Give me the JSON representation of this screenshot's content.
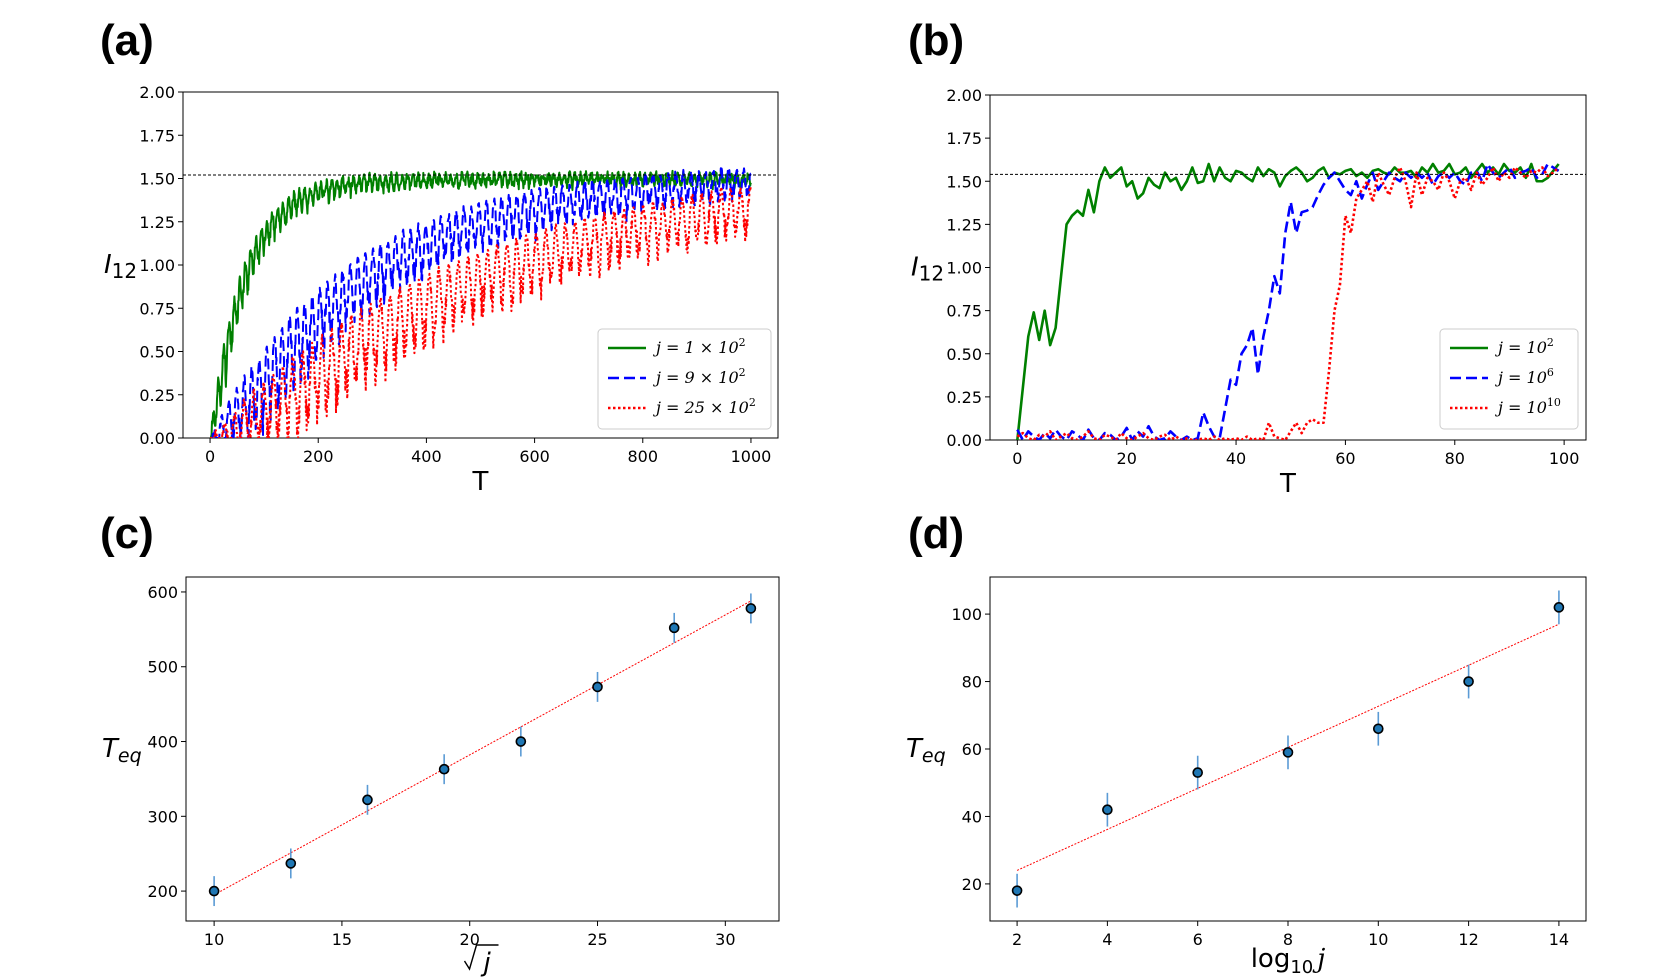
{
  "figure": {
    "panel_labels": [
      "(a)",
      "(b)",
      "(c)",
      "(d)"
    ]
  },
  "chart_data": [
    {
      "id": "a",
      "type": "line",
      "xlabel": "T",
      "ylabel": "I",
      "ylabel_sub": "12",
      "xlim": [
        -50,
        1050
      ],
      "ylim": [
        0,
        2.0
      ],
      "xticks": [
        0,
        200,
        400,
        600,
        800,
        1000
      ],
      "yticks": [
        0.0,
        0.25,
        0.5,
        0.75,
        1.0,
        1.25,
        1.5,
        1.75,
        2.0
      ],
      "ytick_labels": [
        "0.00",
        "0.25",
        "0.50",
        "0.75",
        "1.00",
        "1.25",
        "1.50",
        "1.75",
        "2.00"
      ],
      "reference_line": 1.52,
      "legend_position": "lower-right",
      "series": [
        {
          "name": "j = 1 × 10",
          "legend_sup": "2",
          "color": "#008000",
          "dash": "solid",
          "model": {
            "x_max": 1000,
            "samples": 1400,
            "tau": 60,
            "sat": 1.52,
            "amp": 0.22,
            "period": 10,
            "amp_decay": 120
          }
        },
        {
          "name": "j = 9 × 10",
          "legend_sup": "2",
          "color": "#0000ff",
          "dash": "dashed",
          "model": {
            "x_max": 1000,
            "samples": 1400,
            "tau": 260,
            "sat": 1.58,
            "amp": 0.38,
            "period": 14,
            "amp_decay": 700
          }
        },
        {
          "name": "j = 25 × 10",
          "legend_sup": "2",
          "color": "#ff0000",
          "dash": "dotted",
          "model": {
            "x_max": 1000,
            "samples": 1400,
            "tau": 480,
            "sat": 1.65,
            "amp": 0.42,
            "period": 18,
            "amp_decay": 1200
          }
        }
      ]
    },
    {
      "id": "b",
      "type": "line",
      "xlabel": "T",
      "ylabel": "I",
      "ylabel_sub": "12",
      "xlim": [
        -5,
        104
      ],
      "ylim": [
        0,
        2.0
      ],
      "xticks": [
        0,
        20,
        40,
        60,
        80,
        100
      ],
      "yticks": [
        0.0,
        0.25,
        0.5,
        0.75,
        1.0,
        1.25,
        1.5,
        1.75,
        2.0
      ],
      "ytick_labels": [
        "0.00",
        "0.25",
        "0.50",
        "0.75",
        "1.00",
        "1.25",
        "1.50",
        "1.75",
        "2.00"
      ],
      "reference_line": 1.54,
      "legend_position": "lower-right",
      "series": [
        {
          "name": "j = 10",
          "legend_sup": "2",
          "color": "#008000",
          "dash": "solid",
          "x": [
            0,
            1,
            2,
            3,
            4,
            5,
            6,
            7,
            8,
            9,
            10,
            11,
            12,
            13,
            14,
            15,
            16,
            17,
            18,
            19,
            20,
            21,
            22,
            23,
            24,
            25,
            26,
            27,
            28,
            29,
            30,
            31,
            32,
            33,
            34,
            35,
            36,
            37,
            38,
            39,
            40,
            41,
            42,
            43,
            44,
            45,
            46,
            47,
            48,
            49,
            50,
            51,
            52,
            53,
            54,
            55,
            56,
            57,
            58,
            59,
            60,
            61,
            62,
            63,
            64,
            65,
            66,
            67,
            68,
            69,
            70,
            71,
            72,
            73,
            74,
            75,
            76,
            77,
            78,
            79,
            80,
            81,
            82,
            83,
            84,
            85,
            86,
            87,
            88,
            89,
            90,
            91,
            92,
            93,
            94,
            95,
            96,
            97,
            98,
            99
          ],
          "y": [
            0.0,
            0.3,
            0.6,
            0.74,
            0.58,
            0.75,
            0.55,
            0.65,
            0.95,
            1.25,
            1.3,
            1.33,
            1.3,
            1.45,
            1.32,
            1.5,
            1.58,
            1.52,
            1.55,
            1.58,
            1.47,
            1.5,
            1.4,
            1.43,
            1.52,
            1.48,
            1.46,
            1.55,
            1.5,
            1.52,
            1.45,
            1.5,
            1.58,
            1.49,
            1.5,
            1.6,
            1.5,
            1.58,
            1.52,
            1.5,
            1.56,
            1.55,
            1.52,
            1.5,
            1.58,
            1.53,
            1.57,
            1.55,
            1.47,
            1.53,
            1.56,
            1.58,
            1.55,
            1.5,
            1.52,
            1.56,
            1.58,
            1.52,
            1.55,
            1.54,
            1.56,
            1.57,
            1.53,
            1.55,
            1.52,
            1.56,
            1.57,
            1.55,
            1.54,
            1.58,
            1.55,
            1.55,
            1.56,
            1.52,
            1.58,
            1.55,
            1.6,
            1.55,
            1.56,
            1.6,
            1.54,
            1.55,
            1.58,
            1.52,
            1.56,
            1.6,
            1.55,
            1.58,
            1.54,
            1.6,
            1.56,
            1.55,
            1.58,
            1.52,
            1.6,
            1.5,
            1.5,
            1.52,
            1.56,
            1.6
          ]
        },
        {
          "name": "j = 10",
          "legend_sup": "6",
          "color": "#0000ff",
          "dash": "dashed",
          "x": [
            0,
            1,
            2,
            3,
            4,
            5,
            6,
            7,
            8,
            9,
            10,
            11,
            12,
            13,
            14,
            15,
            16,
            17,
            18,
            19,
            20,
            21,
            22,
            23,
            24,
            25,
            26,
            27,
            28,
            29,
            30,
            31,
            32,
            33,
            34,
            35,
            36,
            37,
            38,
            39,
            40,
            41,
            42,
            43,
            44,
            45,
            46,
            47,
            48,
            49,
            50,
            51,
            52,
            53,
            54,
            55,
            56,
            57,
            58,
            59,
            60,
            61,
            62,
            63,
            64,
            65,
            66,
            67,
            68,
            69,
            70,
            71,
            72,
            73,
            74,
            75,
            76,
            77,
            78,
            79,
            80,
            81,
            82,
            83,
            84,
            85,
            86,
            87,
            88,
            89,
            90,
            91,
            92,
            93,
            94,
            95,
            96,
            97,
            98,
            99
          ],
          "y": [
            0.06,
            0.0,
            0.05,
            0.02,
            0.0,
            0.04,
            0.01,
            0.06,
            0.02,
            0.0,
            0.05,
            0.03,
            0.0,
            0.06,
            0.01,
            0.0,
            0.04,
            0.03,
            0.0,
            0.02,
            0.07,
            0.0,
            0.05,
            0.02,
            0.08,
            0.02,
            0.0,
            0.01,
            0.05,
            0.02,
            0.0,
            0.02,
            0.0,
            0.01,
            0.16,
            0.08,
            0.02,
            0.01,
            0.18,
            0.35,
            0.32,
            0.5,
            0.55,
            0.65,
            0.38,
            0.6,
            0.75,
            0.95,
            0.85,
            1.2,
            1.38,
            1.2,
            1.32,
            1.33,
            1.35,
            1.42,
            1.48,
            1.52,
            1.55,
            1.5,
            1.45,
            1.42,
            1.5,
            1.4,
            1.48,
            1.55,
            1.45,
            1.5,
            1.55,
            1.52,
            1.5,
            1.55,
            1.52,
            1.55,
            1.52,
            1.55,
            1.48,
            1.53,
            1.55,
            1.52,
            1.55,
            1.5,
            1.48,
            1.55,
            1.56,
            1.5,
            1.6,
            1.55,
            1.52,
            1.55,
            1.58,
            1.52,
            1.55,
            1.56,
            1.58,
            1.52,
            1.54,
            1.6,
            1.58,
            1.56
          ]
        },
        {
          "name": "j = 10",
          "legend_sup": "10",
          "color": "#ff0000",
          "dash": "dotted",
          "x": [
            0,
            1,
            2,
            3,
            4,
            5,
            6,
            7,
            8,
            9,
            10,
            11,
            12,
            13,
            14,
            15,
            16,
            17,
            18,
            19,
            20,
            21,
            22,
            23,
            24,
            25,
            26,
            27,
            28,
            29,
            30,
            31,
            32,
            33,
            34,
            35,
            36,
            37,
            38,
            39,
            40,
            41,
            42,
            43,
            44,
            45,
            46,
            47,
            48,
            49,
            50,
            51,
            52,
            53,
            54,
            55,
            56,
            57,
            58,
            59,
            60,
            61,
            62,
            63,
            64,
            65,
            66,
            67,
            68,
            69,
            70,
            71,
            72,
            73,
            74,
            75,
            76,
            77,
            78,
            79,
            80,
            81,
            82,
            83,
            84,
            85,
            86,
            87,
            88,
            89,
            90,
            91,
            92,
            93,
            94,
            95,
            96,
            97,
            98,
            99
          ],
          "y": [
            0.02,
            0.04,
            0.01,
            0.0,
            0.03,
            0.02,
            0.05,
            0.0,
            0.02,
            0.04,
            0.01,
            0.0,
            0.02,
            0.05,
            0.01,
            0.0,
            0.03,
            0.02,
            0.0,
            0.04,
            0.01,
            0.0,
            0.02,
            0.04,
            0.01,
            0.0,
            0.02,
            0.03,
            0.0,
            0.02,
            0.0,
            0.01,
            0.0,
            0.0,
            0.01,
            0.0,
            0.02,
            0.0,
            0.01,
            0.0,
            0.01,
            0.0,
            0.02,
            0.0,
            0.01,
            0.0,
            0.1,
            0.02,
            0.01,
            0.0,
            0.05,
            0.1,
            0.04,
            0.1,
            0.12,
            0.1,
            0.1,
            0.4,
            0.75,
            0.9,
            1.3,
            1.2,
            1.4,
            1.45,
            1.5,
            1.38,
            1.55,
            1.48,
            1.42,
            1.52,
            1.58,
            1.5,
            1.35,
            1.55,
            1.42,
            1.52,
            1.5,
            1.45,
            1.55,
            1.5,
            1.4,
            1.5,
            1.52,
            1.45,
            1.55,
            1.48,
            1.52,
            1.58,
            1.5,
            1.55,
            1.52,
            1.58,
            1.55,
            1.52,
            1.56,
            1.55,
            1.58,
            1.53,
            1.55,
            1.58
          ]
        }
      ]
    },
    {
      "id": "c",
      "type": "scatter",
      "xlabel": "√j",
      "ylabel": "T",
      "ylabel_sub": "eq",
      "xlim": [
        8.9,
        32.1
      ],
      "ylim": [
        160,
        620
      ],
      "xticks": [
        10,
        15,
        20,
        25,
        30
      ],
      "yticks": [
        200,
        300,
        400,
        500,
        600
      ],
      "x": [
        10,
        13,
        16,
        19,
        22,
        25,
        28,
        31
      ],
      "y": [
        200,
        237,
        322,
        363,
        400,
        473,
        552,
        578
      ],
      "yerr": [
        20,
        20,
        20,
        20,
        20,
        20,
        20,
        20
      ],
      "fit_line": {
        "x": [
          10,
          31
        ],
        "y": [
          195,
          588
        ],
        "color": "#ff0000"
      }
    },
    {
      "id": "d",
      "type": "scatter",
      "xlabel": "log",
      "xlabel_sub": "10",
      "xlabel_var": "j",
      "ylabel": "T",
      "ylabel_sub": "eq",
      "xlim": [
        1.4,
        14.6
      ],
      "ylim": [
        9,
        111
      ],
      "xticks": [
        2,
        4,
        6,
        8,
        10,
        12,
        14
      ],
      "yticks": [
        20,
        40,
        60,
        80,
        100
      ],
      "x": [
        2,
        4,
        6,
        8,
        10,
        12,
        14
      ],
      "y": [
        18,
        42,
        53,
        59,
        66,
        80,
        102
      ],
      "yerr": [
        5,
        5,
        5,
        5,
        5,
        5,
        5
      ],
      "fit_line": {
        "x": [
          2,
          14
        ],
        "y": [
          24,
          97
        ],
        "color": "#ff0000"
      }
    }
  ]
}
